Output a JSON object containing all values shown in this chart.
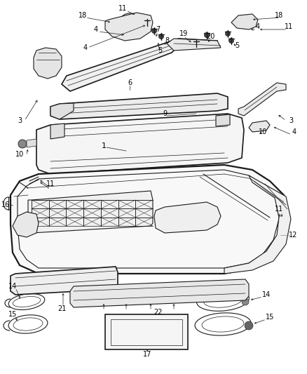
{
  "bg_color": "#ffffff",
  "line_color": "#1a1a1a",
  "label_color": "#000000",
  "fig_width": 4.38,
  "fig_height": 5.33,
  "dpi": 100,
  "gray1": "#888888",
  "gray2": "#555555",
  "gray3": "#cccccc"
}
